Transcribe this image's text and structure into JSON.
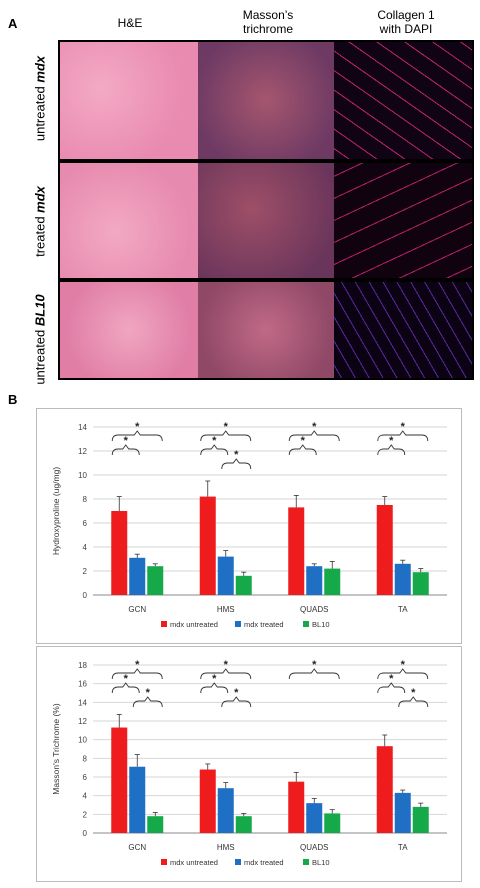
{
  "panelA": {
    "letter": "A",
    "columns": [
      "H&E",
      "Masson’s\ntrichrome",
      "Collagen 1\nwith DAPI"
    ],
    "rows": [
      {
        "prefix": "untreated ",
        "strain": "mdx"
      },
      {
        "prefix": "treated ",
        "strain": "mdx"
      },
      {
        "prefix": "untreated ",
        "strain": "BL10"
      }
    ]
  },
  "panelB": {
    "letter": "B"
  },
  "colors": {
    "mdx_untreated": "#ee1c1c",
    "mdx_treated": "#1f6fc4",
    "bl10": "#16a94a"
  },
  "chart_data": [
    {
      "type": "bar",
      "categories": [
        "GCN",
        "HMS",
        "QUADS",
        "TA"
      ],
      "ylabel": "Hydroxyproline (ug/mg)",
      "ylim": [
        0,
        14
      ],
      "yticks": [
        0,
        2,
        4,
        6,
        8,
        10,
        12,
        14
      ],
      "series": [
        {
          "name": "mdx untreated",
          "values": [
            7.0,
            8.2,
            7.3,
            7.5
          ],
          "errors": [
            1.2,
            1.3,
            1.0,
            0.7
          ]
        },
        {
          "name": "mdx treated",
          "values": [
            3.1,
            3.2,
            2.4,
            2.6
          ],
          "errors": [
            0.3,
            0.5,
            0.2,
            0.3
          ]
        },
        {
          "name": "BL10",
          "values": [
            2.4,
            1.6,
            2.2,
            1.9
          ],
          "errors": [
            0.2,
            0.3,
            0.6,
            0.3
          ]
        }
      ],
      "significance": "*",
      "legend": "bottom"
    },
    {
      "type": "bar",
      "categories": [
        "GCN",
        "HMS",
        "QUADS",
        "TA"
      ],
      "ylabel": "Masson's Trichrome (%)",
      "ylim": [
        0,
        18
      ],
      "yticks": [
        0,
        2,
        4,
        6,
        8,
        10,
        12,
        14,
        16,
        18
      ],
      "series": [
        {
          "name": "mdx untreated",
          "values": [
            11.3,
            6.8,
            5.5,
            9.3
          ],
          "errors": [
            1.4,
            0.6,
            1.0,
            1.2
          ]
        },
        {
          "name": "mdx treated",
          "values": [
            7.1,
            4.8,
            3.2,
            4.3
          ],
          "errors": [
            1.3,
            0.6,
            0.5,
            0.3
          ]
        },
        {
          "name": "BL10",
          "values": [
            1.8,
            1.8,
            2.1,
            2.8
          ],
          "errors": [
            0.4,
            0.3,
            0.4,
            0.4
          ]
        }
      ],
      "significance": "*",
      "legend": "bottom"
    }
  ]
}
